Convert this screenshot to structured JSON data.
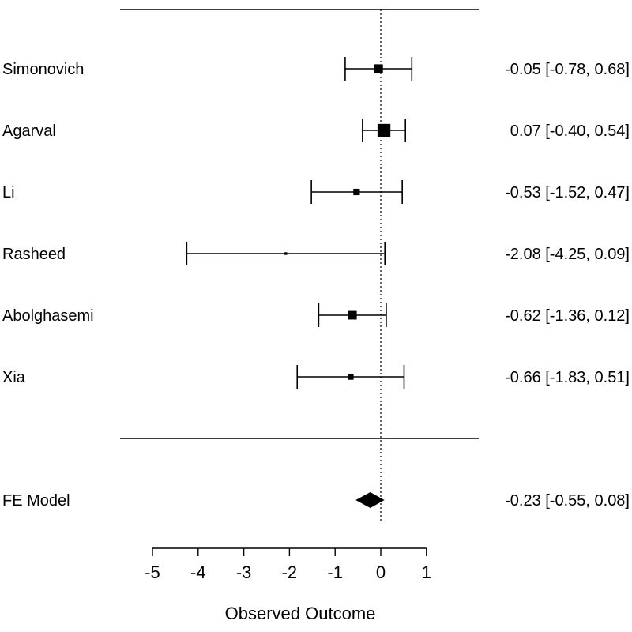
{
  "chart_data": {
    "type": "forest",
    "xlabel": "Observed Outcome",
    "xlim": [
      -5,
      1
    ],
    "x_ticks": [
      "-5",
      "-4",
      "-3",
      "-2",
      "-1",
      "0",
      "1"
    ],
    "reference_line": 0,
    "studies": [
      {
        "name": "Simonovich",
        "estimate": -0.05,
        "lower": -0.78,
        "upper": 0.68,
        "ci_text": "-0.05 [-0.78, 0.68]",
        "weight": 3.3
      },
      {
        "name": "Agarval",
        "estimate": 0.07,
        "lower": -0.4,
        "upper": 0.54,
        "ci_text": "0.07 [-0.40, 0.54]",
        "weight": 4.8
      },
      {
        "name": "Li",
        "estimate": -0.53,
        "lower": -1.52,
        "upper": 0.47,
        "ci_text": "-0.53 [-1.52, 0.47]",
        "weight": 2.4
      },
      {
        "name": "Rasheed",
        "estimate": -2.08,
        "lower": -4.25,
        "upper": 0.09,
        "ci_text": "-2.08 [-4.25, 0.09]",
        "weight": 1.0
      },
      {
        "name": "Abolghasemi",
        "estimate": -0.62,
        "lower": -1.36,
        "upper": 0.12,
        "ci_text": "-0.62 [-1.36, 0.12]",
        "weight": 3.2
      },
      {
        "name": "Xia",
        "estimate": -0.66,
        "lower": -1.83,
        "upper": 0.51,
        "ci_text": "-0.66 [-1.83, 0.51]",
        "weight": 2.2
      }
    ],
    "summary": {
      "name": "FE Model",
      "estimate": -0.23,
      "lower": -0.55,
      "upper": 0.08,
      "ci_text": "-0.23 [-0.55, 0.08]"
    }
  }
}
